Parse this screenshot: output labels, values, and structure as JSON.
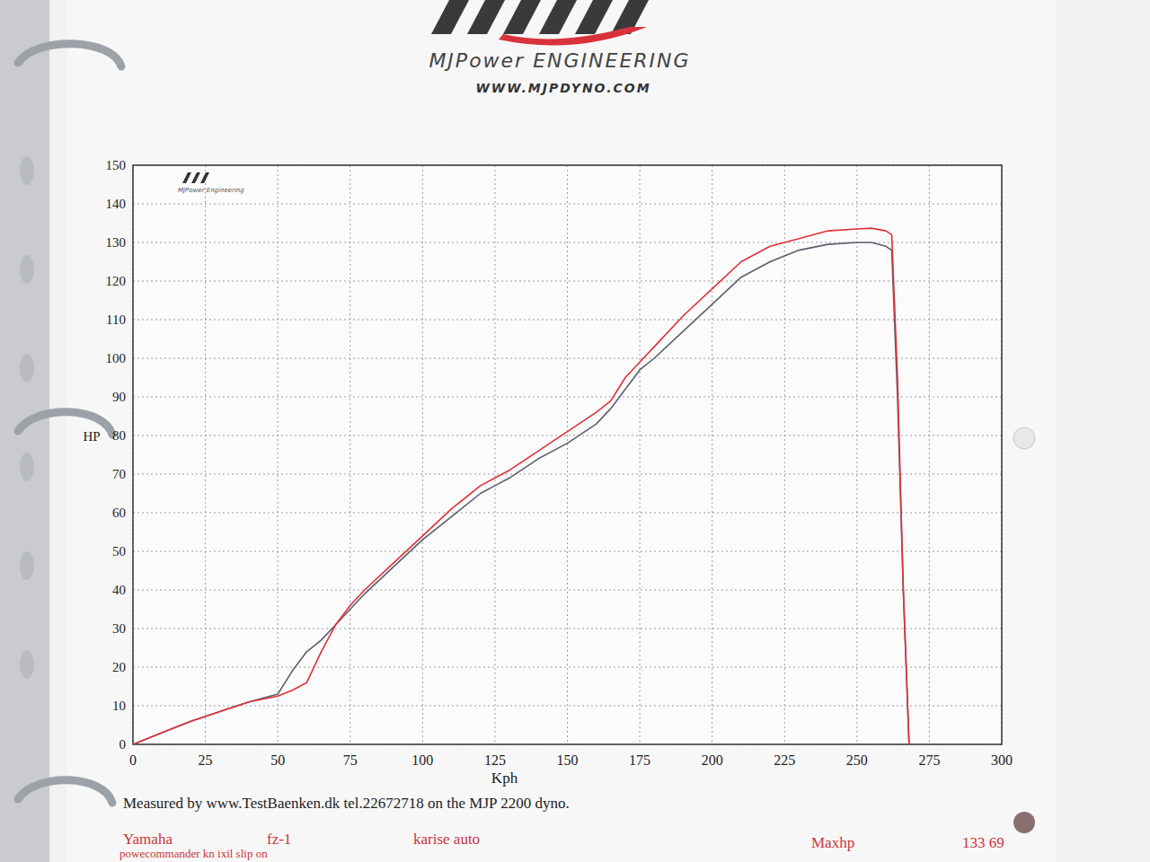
{
  "header": {
    "brand": "MJPower ENGINEERING",
    "url": "WWW.MJPDYNO.COM"
  },
  "chart_data": {
    "type": "line",
    "watermark": "MJPower Engineering",
    "x_label": "Kph",
    "y_label": "HP",
    "x": [
      0,
      10,
      20,
      30,
      40,
      50,
      55,
      60,
      65,
      70,
      75,
      80,
      90,
      100,
      110,
      120,
      125,
      130,
      140,
      150,
      160,
      165,
      170,
      175,
      180,
      190,
      200,
      210,
      220,
      230,
      240,
      250,
      255,
      260,
      262,
      264,
      266,
      268
    ],
    "series": [
      {
        "color": "#5a5f6b",
        "values": [
          0,
          3,
          6,
          8.5,
          11,
          13,
          19,
          24,
          27,
          31,
          35,
          39,
          46,
          53,
          59,
          65,
          67,
          69,
          74,
          78,
          83,
          87,
          92,
          97,
          100,
          107,
          114,
          121,
          125,
          128,
          129.5,
          130,
          130,
          129,
          128,
          90,
          40,
          0
        ]
      },
      {
        "color": "#e0303a",
        "values": [
          0,
          3,
          6,
          8.5,
          11,
          12.5,
          14,
          16,
          24,
          31,
          36,
          40,
          47,
          54,
          61,
          67,
          69,
          71,
          76,
          81,
          86,
          89,
          95,
          99,
          103,
          111,
          118,
          125,
          129,
          131,
          133,
          133.5,
          133.69,
          133,
          132,
          95,
          40,
          0
        ]
      }
    ],
    "xlim": [
      0,
      300
    ],
    "xticks": [
      0,
      25,
      50,
      75,
      100,
      125,
      150,
      175,
      200,
      225,
      250,
      275,
      300
    ],
    "ylim": [
      0,
      150
    ],
    "yticks": [
      0,
      10,
      20,
      30,
      40,
      50,
      60,
      70,
      80,
      90,
      100,
      110,
      120,
      130,
      140,
      150
    ],
    "grid": true
  },
  "footer": {
    "measured": "Measured by www.TestBaenken.dk tel.22672718 on the MJP 2200 dyno.",
    "make": "Yamaha",
    "model": "fz-1",
    "shop": "karise auto",
    "maxhp_label": "Maxhp",
    "maxhp_value": "133 69",
    "mods": "powecommander kn ixil slip on"
  }
}
